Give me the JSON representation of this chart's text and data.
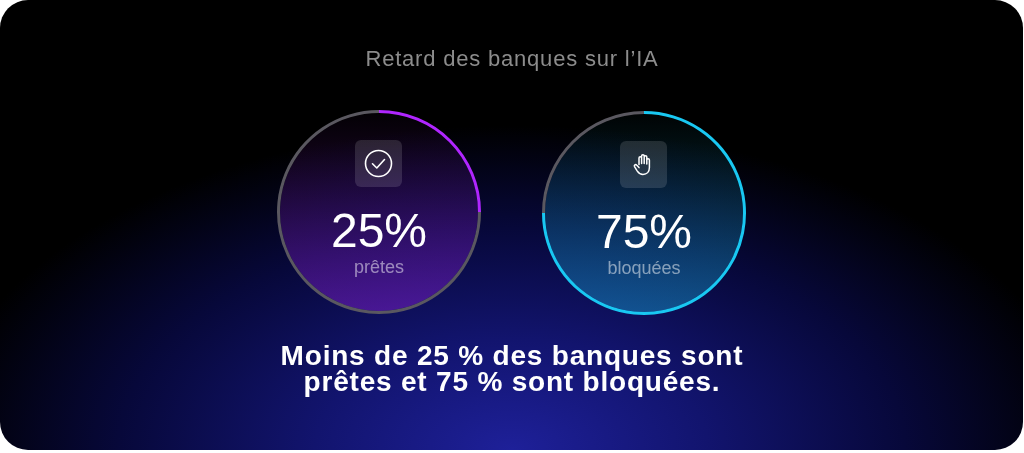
{
  "chart_data": [
    {
      "type": "donut",
      "title": "Retard des banques sur l’IA",
      "categories": [
        null,
        null
      ],
      "values": [
        25,
        75
      ],
      "colors": [
        "#b026ff",
        "#5a5860"
      ],
      "annotations": [
        "25%",
        "prêtes"
      ]
    },
    {
      "type": "donut",
      "categories": [
        null,
        null
      ],
      "values": [
        75,
        25
      ],
      "colors": [
        "#19c8f2",
        "#5a5860"
      ],
      "annotations": [
        "75%",
        "bloquées",
        "Moins de 25 % des banques sont prêtes et 75 % sont bloquées."
      ]
    }
  ]
}
